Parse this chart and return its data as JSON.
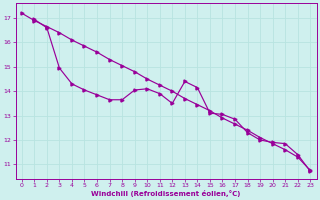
{
  "xlabel": "Windchill (Refroidissement éolien,°C)",
  "background_color": "#cff0ee",
  "grid_color": "#b8e4e0",
  "line_color": "#990099",
  "x_ticks": [
    0,
    1,
    2,
    3,
    4,
    5,
    6,
    7,
    8,
    9,
    10,
    11,
    12,
    13,
    14,
    15,
    16,
    17,
    18,
    19,
    20,
    21,
    22,
    23
  ],
  "y_ticks": [
    11,
    12,
    13,
    14,
    15,
    16,
    17
  ],
  "xlim": [
    -0.5,
    23.5
  ],
  "ylim": [
    10.4,
    17.6
  ],
  "line_straight_x": [
    0,
    1,
    2,
    3,
    4,
    5,
    6,
    7,
    8,
    9,
    10,
    11,
    12,
    13,
    14,
    15,
    16,
    17,
    18,
    19,
    20,
    21,
    22,
    23
  ],
  "line_straight_y": [
    17.2,
    16.9,
    16.65,
    16.4,
    16.1,
    15.85,
    15.6,
    15.3,
    15.05,
    14.8,
    14.5,
    14.25,
    14.0,
    13.7,
    13.45,
    13.2,
    12.9,
    12.65,
    12.4,
    12.1,
    11.85,
    11.6,
    11.3,
    10.75
  ],
  "line_irregular_x": [
    1,
    2,
    3,
    4,
    5,
    6,
    7,
    8,
    9,
    10,
    11,
    12,
    13,
    14,
    15,
    16,
    17,
    18,
    19,
    20,
    21,
    22,
    23
  ],
  "line_irregular_y": [
    16.95,
    16.6,
    14.95,
    14.3,
    14.05,
    13.85,
    13.65,
    13.65,
    14.05,
    14.1,
    13.9,
    13.5,
    14.4,
    14.15,
    13.1,
    13.05,
    12.85,
    12.3,
    12.0,
    11.9,
    11.85,
    11.4,
    10.72
  ]
}
